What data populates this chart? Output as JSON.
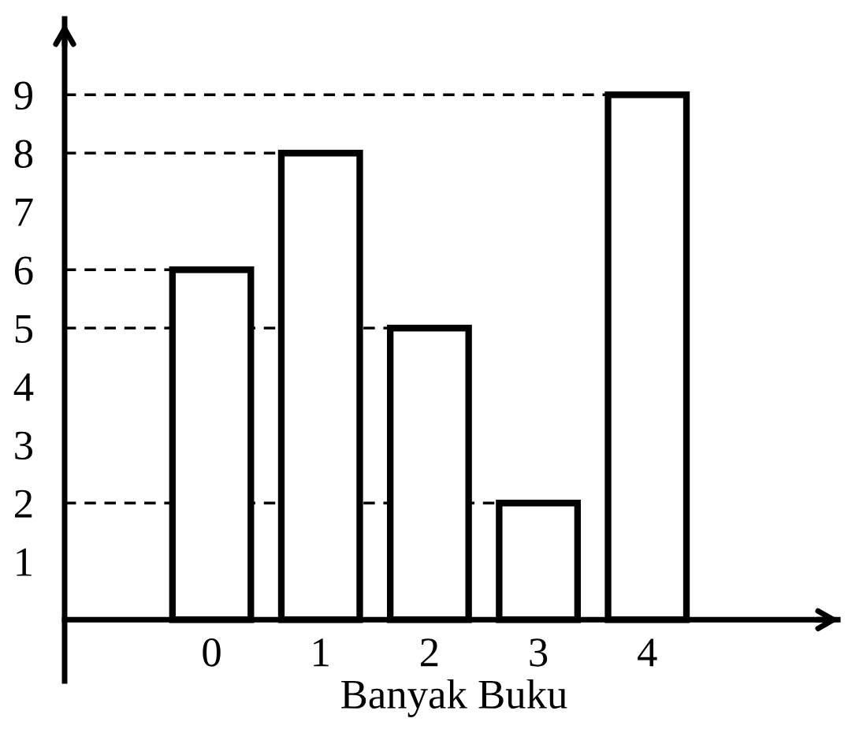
{
  "chart_data": {
    "type": "bar",
    "xlabel": "Banyak Buku",
    "categories": [
      "0",
      "1",
      "2",
      "3",
      "4"
    ],
    "values": [
      6,
      8,
      5,
      2,
      9
    ],
    "color": "#ffffff",
    "ylim": [
      -1.05,
      10.3
    ],
    "yticks": [
      1,
      2,
      3,
      4,
      5,
      6,
      7,
      8,
      9
    ],
    "ref_lines": [
      {
        "axis": "y",
        "value": 9,
        "line_style": "dashed",
        "color": "#000000"
      },
      {
        "axis": "y",
        "value": 8,
        "line_style": "dashed",
        "color": "#000000"
      },
      {
        "axis": "y",
        "value": 6,
        "line_style": "dashed",
        "color": "#000000"
      },
      {
        "axis": "y",
        "value": 5,
        "line_style": "dashed",
        "color": "#000000"
      },
      {
        "axis": "y",
        "value": 2,
        "line_style": "dashed",
        "color": "#000000"
      }
    ],
    "grid": false,
    "legend": false
  }
}
